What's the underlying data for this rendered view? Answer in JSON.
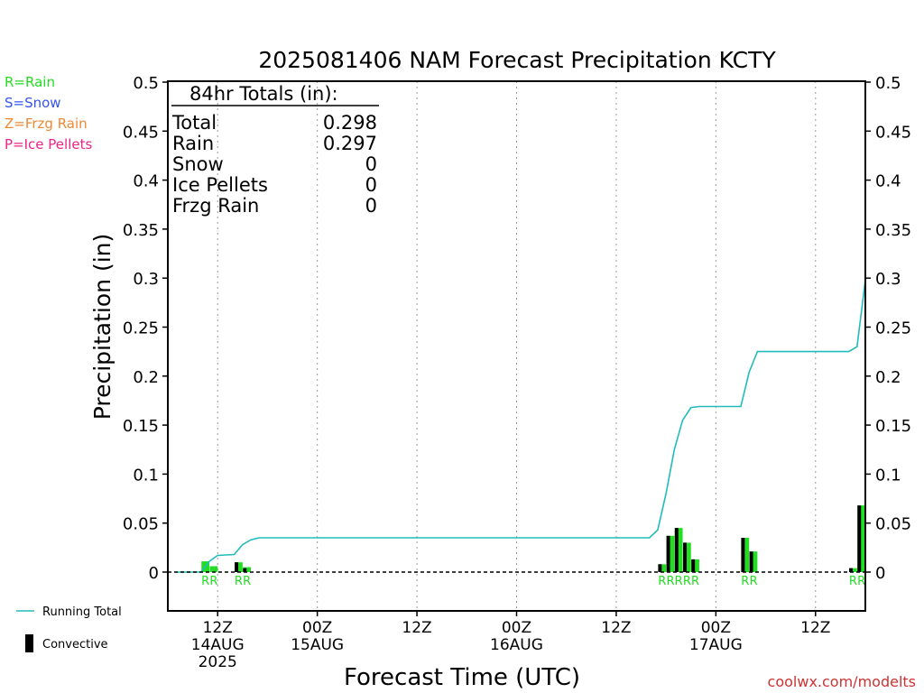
{
  "chart_data": {
    "type": "bar",
    "title": "2025081406 NAM Forecast Precipitation KCTY",
    "xlabel": "Forecast Time (UTC)",
    "ylabel": "Precipitation (in)",
    "ylim": [
      0,
      0.5
    ],
    "yticks": [
      "0",
      "0.05",
      "0.1",
      "0.15",
      "0.2",
      "0.25",
      "0.3",
      "0.35",
      "0.4",
      "0.45",
      "0.5"
    ],
    "xlim": [
      0,
      84
    ],
    "xticks": [
      {
        "hour": 6,
        "line1": "12Z",
        "line2": "14AUG",
        "line3": "2025"
      },
      {
        "hour": 18,
        "line1": "00Z",
        "line2": "15AUG",
        "line3": ""
      },
      {
        "hour": 30,
        "line1": "12Z",
        "line2": "",
        "line3": ""
      },
      {
        "hour": 42,
        "line1": "00Z",
        "line2": "16AUG",
        "line3": ""
      },
      {
        "hour": 54,
        "line1": "12Z",
        "line2": "",
        "line3": ""
      },
      {
        "hour": 66,
        "line1": "00Z",
        "line2": "17AUG",
        "line3": ""
      },
      {
        "hour": 78,
        "line1": "12Z",
        "line2": "",
        "line3": ""
      }
    ],
    "legend_types": [
      {
        "text": "R=Rain",
        "color": "#22dd22"
      },
      {
        "text": "S=Snow",
        "color": "#3355ee"
      },
      {
        "text": "Z=Frzg Rain",
        "color": "#ee8833"
      },
      {
        "text": "P=Ice Pellets",
        "color": "#ee2288"
      }
    ],
    "legend_lines": [
      {
        "text": "Running Total",
        "color": "#22bbbb"
      },
      {
        "text": "Convective",
        "color": "#000000"
      }
    ],
    "totals": {
      "heading": "84hr Totals (in):",
      "rows": [
        {
          "label": "Total",
          "value": "0.298"
        },
        {
          "label": "Rain",
          "value": "0.297"
        },
        {
          "label": "Snow",
          "value": "0"
        },
        {
          "label": "Ice Pellets",
          "value": "0"
        },
        {
          "label": "Frzg Rain",
          "value": "0"
        }
      ]
    },
    "bars": [
      {
        "hour": 5,
        "total": 0.011,
        "convective": 0.0
      },
      {
        "hour": 6,
        "total": 0.006,
        "convective": 0.0
      },
      {
        "hour": 9,
        "total": 0.01,
        "convective": 0.01
      },
      {
        "hour": 10,
        "total": 0.005,
        "convective": 0.004
      },
      {
        "hour": 60,
        "total": 0.008,
        "convective": 0.008
      },
      {
        "hour": 61,
        "total": 0.037,
        "convective": 0.037
      },
      {
        "hour": 62,
        "total": 0.045,
        "convective": 0.045
      },
      {
        "hour": 63,
        "total": 0.03,
        "convective": 0.03
      },
      {
        "hour": 64,
        "total": 0.013,
        "convective": 0.013
      },
      {
        "hour": 70,
        "total": 0.035,
        "convective": 0.035
      },
      {
        "hour": 71,
        "total": 0.021,
        "convective": 0.021
      },
      {
        "hour": 83,
        "total": 0.004,
        "convective": 0.004
      },
      {
        "hour": 84,
        "total": 0.068,
        "convective": 0.068
      }
    ],
    "type_labels": [
      {
        "hour": 5,
        "text": "R"
      },
      {
        "hour": 6,
        "text": "R"
      },
      {
        "hour": 9,
        "text": "R"
      },
      {
        "hour": 10,
        "text": "R"
      },
      {
        "hour": 60,
        "text": "R"
      },
      {
        "hour": 61,
        "text": "R"
      },
      {
        "hour": 62,
        "text": "R"
      },
      {
        "hour": 63,
        "text": "R"
      },
      {
        "hour": 64,
        "text": "R"
      },
      {
        "hour": 70,
        "text": "R"
      },
      {
        "hour": 71,
        "text": "R"
      },
      {
        "hour": 83,
        "text": "R"
      },
      {
        "hour": 84,
        "text": "R"
      }
    ],
    "running_total": [
      {
        "hour": 1,
        "value": 0
      },
      {
        "hour": 4,
        "value": 0
      },
      {
        "hour": 5,
        "value": 0.011
      },
      {
        "hour": 6,
        "value": 0.017
      },
      {
        "hour": 8,
        "value": 0.018
      },
      {
        "hour": 9,
        "value": 0.028
      },
      {
        "hour": 10,
        "value": 0.033
      },
      {
        "hour": 11,
        "value": 0.035
      },
      {
        "hour": 58,
        "value": 0.035
      },
      {
        "hour": 59,
        "value": 0.043
      },
      {
        "hour": 60,
        "value": 0.08
      },
      {
        "hour": 61,
        "value": 0.125
      },
      {
        "hour": 62,
        "value": 0.155
      },
      {
        "hour": 63,
        "value": 0.168
      },
      {
        "hour": 64,
        "value": 0.169
      },
      {
        "hour": 69,
        "value": 0.169
      },
      {
        "hour": 70,
        "value": 0.204
      },
      {
        "hour": 71,
        "value": 0.225
      },
      {
        "hour": 82,
        "value": 0.225
      },
      {
        "hour": 83,
        "value": 0.23
      },
      {
        "hour": 84,
        "value": 0.298
      }
    ],
    "colors": {
      "rain": "#22dd22",
      "convective": "#000000",
      "running_total": "#22bbbb",
      "grid": "#999999",
      "credit": "#cc3333"
    },
    "credit": "coolwx.com/modelts"
  }
}
